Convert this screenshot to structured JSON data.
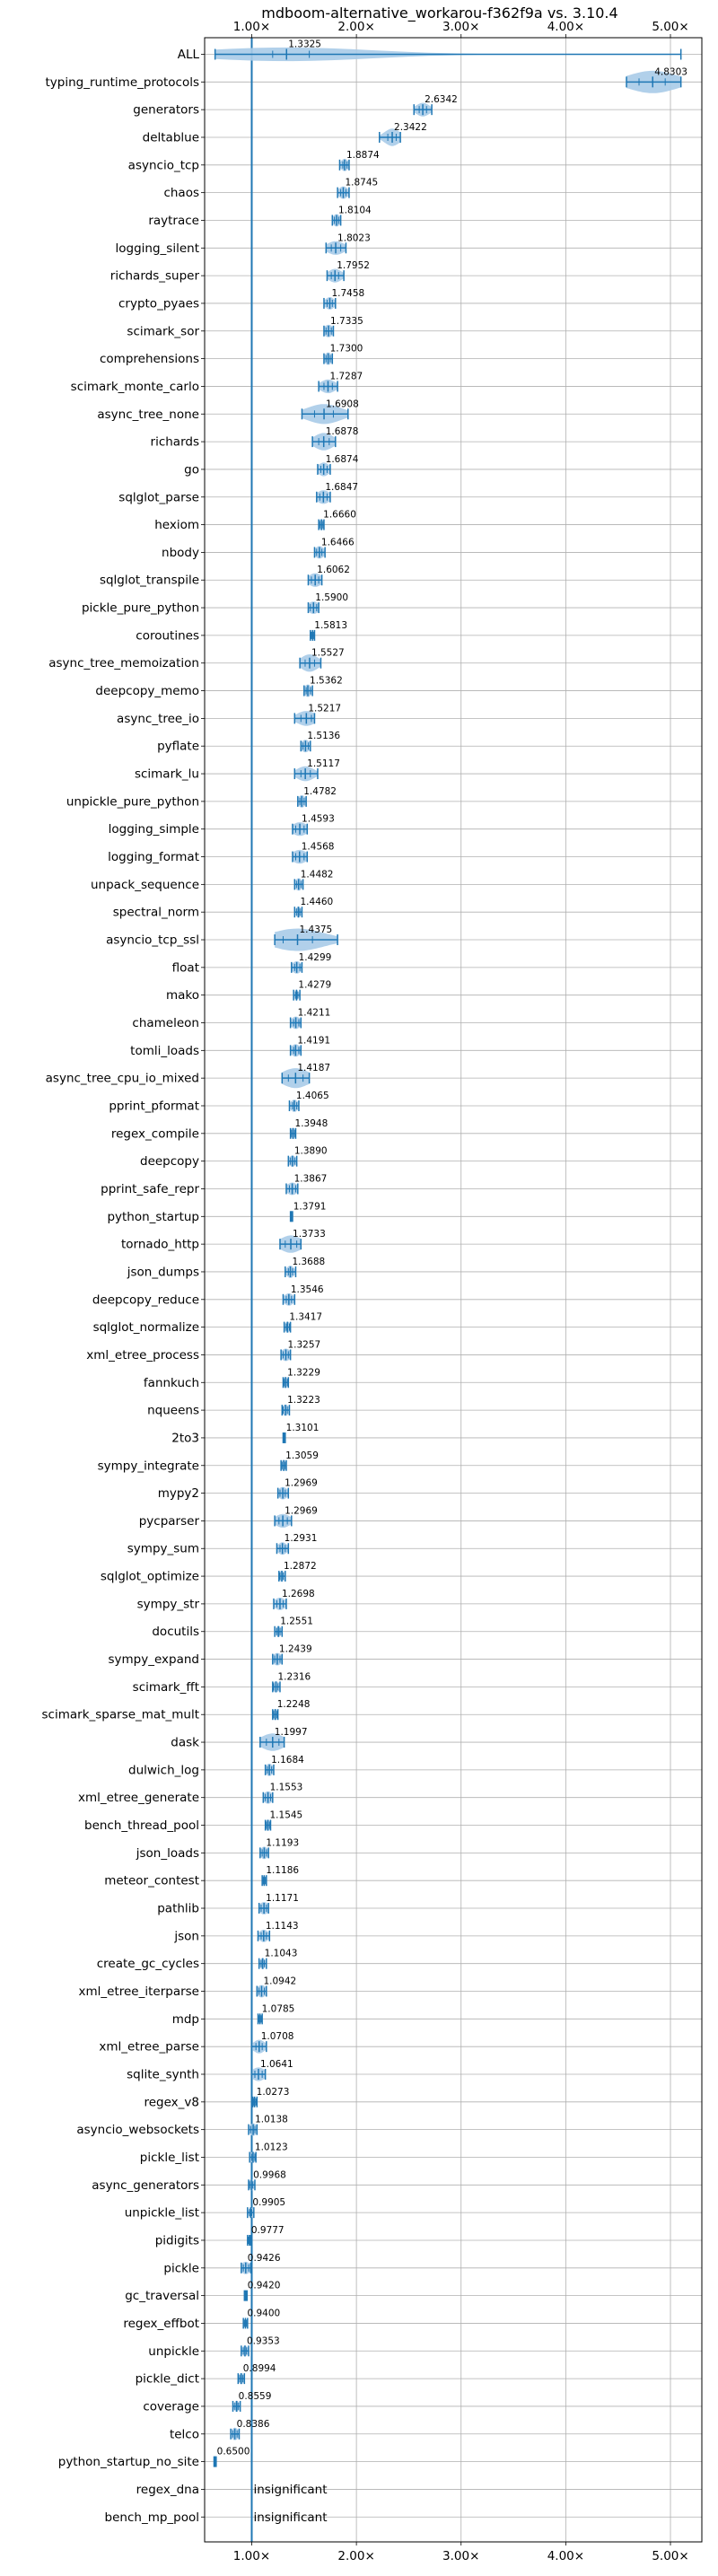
{
  "chart_data": {
    "type": "violin",
    "title": "mdboom-alternative_workarou-f362f9a vs. 3.10.4",
    "x_scale": "linear",
    "x_ticks": [
      1.0,
      2.0,
      3.0,
      4.0,
      5.0
    ],
    "x_tick_labels": [
      "1.00×",
      "2.00×",
      "3.00×",
      "4.00×",
      "5.00×"
    ],
    "xlim": [
      0.55,
      5.3
    ],
    "reference_line": 1.0,
    "grid": true,
    "colors": {
      "violin_fill": "#a9cbe8",
      "line": "#1f77b4",
      "grid": "#b0b0b0"
    },
    "insignificant_label": "insignificant",
    "benchmarks": [
      {
        "name": "ALL",
        "value": 1.3325,
        "label": "1.3325",
        "min": 0.65,
        "max": 5.1,
        "q1": 1.2,
        "q3": 1.55,
        "width": 0.55
      },
      {
        "name": "typing_runtime_protocols",
        "value": 4.8303,
        "label": "4.8303",
        "min": 4.58,
        "max": 5.1,
        "q1": 4.7,
        "q3": 4.95,
        "width": 0.9
      },
      {
        "name": "generators",
        "value": 2.6342,
        "label": "2.6342",
        "min": 2.55,
        "max": 2.72,
        "q1": 2.6,
        "q3": 2.67,
        "width": 0.55
      },
      {
        "name": "deltablue",
        "value": 2.3422,
        "label": "2.3422",
        "min": 2.22,
        "max": 2.42,
        "q1": 2.3,
        "q3": 2.38,
        "width": 0.7
      },
      {
        "name": "asyncio_tcp",
        "value": 1.8874,
        "label": "1.8874",
        "min": 1.84,
        "max": 1.93,
        "q1": 1.87,
        "q3": 1.91,
        "width": 0.5
      },
      {
        "name": "chaos",
        "value": 1.8745,
        "label": "1.8745",
        "min": 1.82,
        "max": 1.93,
        "q1": 1.85,
        "q3": 1.9,
        "width": 0.5
      },
      {
        "name": "raytrace",
        "value": 1.8104,
        "label": "1.8104",
        "min": 1.77,
        "max": 1.85,
        "q1": 1.79,
        "q3": 1.83,
        "width": 0.5
      },
      {
        "name": "logging_silent",
        "value": 1.8023,
        "label": "1.8023",
        "min": 1.71,
        "max": 1.9,
        "q1": 1.76,
        "q3": 1.85,
        "width": 0.55
      },
      {
        "name": "richards_super",
        "value": 1.7952,
        "label": "1.7952",
        "min": 1.72,
        "max": 1.88,
        "q1": 1.76,
        "q3": 1.83,
        "width": 0.55
      },
      {
        "name": "crypto_pyaes",
        "value": 1.7458,
        "label": "1.7458",
        "min": 1.69,
        "max": 1.8,
        "q1": 1.72,
        "q3": 1.77,
        "width": 0.5
      },
      {
        "name": "scimark_sor",
        "value": 1.7335,
        "label": "1.7335",
        "min": 1.69,
        "max": 1.78,
        "q1": 1.71,
        "q3": 1.76,
        "width": 0.5
      },
      {
        "name": "comprehensions",
        "value": 1.73,
        "label": "1.7300",
        "min": 1.69,
        "max": 1.77,
        "q1": 1.71,
        "q3": 1.75,
        "width": 0.5
      },
      {
        "name": "scimark_monte_carlo",
        "value": 1.7287,
        "label": "1.7287",
        "min": 1.64,
        "max": 1.82,
        "q1": 1.69,
        "q3": 1.77,
        "width": 0.55
      },
      {
        "name": "async_tree_none",
        "value": 1.6908,
        "label": "1.6908",
        "min": 1.48,
        "max": 1.92,
        "q1": 1.6,
        "q3": 1.78,
        "width": 0.8
      },
      {
        "name": "richards",
        "value": 1.6878,
        "label": "1.6878",
        "min": 1.58,
        "max": 1.8,
        "q1": 1.64,
        "q3": 1.74,
        "width": 0.7
      },
      {
        "name": "go",
        "value": 1.6874,
        "label": "1.6874",
        "min": 1.63,
        "max": 1.75,
        "q1": 1.66,
        "q3": 1.72,
        "width": 0.55
      },
      {
        "name": "sqlglot_parse",
        "value": 1.6847,
        "label": "1.6847",
        "min": 1.62,
        "max": 1.75,
        "q1": 1.65,
        "q3": 1.72,
        "width": 0.55
      },
      {
        "name": "hexiom",
        "value": 1.666,
        "label": "1.6660",
        "min": 1.64,
        "max": 1.69,
        "q1": 1.65,
        "q3": 1.68,
        "width": 0.45
      },
      {
        "name": "nbody",
        "value": 1.6466,
        "label": "1.6466",
        "min": 1.6,
        "max": 1.7,
        "q1": 1.62,
        "q3": 1.67,
        "width": 0.5
      },
      {
        "name": "sqlglot_transpile",
        "value": 1.6062,
        "label": "1.6062",
        "min": 1.54,
        "max": 1.67,
        "q1": 1.57,
        "q3": 1.64,
        "width": 0.55
      },
      {
        "name": "pickle_pure_python",
        "value": 1.59,
        "label": "1.5900",
        "min": 1.54,
        "max": 1.64,
        "q1": 1.56,
        "q3": 1.62,
        "width": 0.5
      },
      {
        "name": "coroutines",
        "value": 1.5813,
        "label": "1.5813",
        "min": 1.56,
        "max": 1.6,
        "q1": 1.57,
        "q3": 1.59,
        "width": 0.35
      },
      {
        "name": "async_tree_memoization",
        "value": 1.5527,
        "label": "1.5527",
        "min": 1.46,
        "max": 1.66,
        "q1": 1.51,
        "q3": 1.6,
        "width": 0.7
      },
      {
        "name": "deepcopy_memo",
        "value": 1.5362,
        "label": "1.5362",
        "min": 1.5,
        "max": 1.58,
        "q1": 1.52,
        "q3": 1.56,
        "width": 0.5
      },
      {
        "name": "async_tree_io",
        "value": 1.5217,
        "label": "1.5217",
        "min": 1.41,
        "max": 1.6,
        "q1": 1.47,
        "q3": 1.57,
        "width": 0.6
      },
      {
        "name": "pyflate",
        "value": 1.5136,
        "label": "1.5136",
        "min": 1.47,
        "max": 1.56,
        "q1": 1.49,
        "q3": 1.54,
        "width": 0.5
      },
      {
        "name": "scimark_lu",
        "value": 1.5117,
        "label": "1.5117",
        "min": 1.41,
        "max": 1.63,
        "q1": 1.47,
        "q3": 1.56,
        "width": 0.6
      },
      {
        "name": "unpickle_pure_python",
        "value": 1.4782,
        "label": "1.4782",
        "min": 1.44,
        "max": 1.52,
        "q1": 1.46,
        "q3": 1.5,
        "width": 0.5
      },
      {
        "name": "logging_simple",
        "value": 1.4593,
        "label": "1.4593",
        "min": 1.39,
        "max": 1.53,
        "q1": 1.42,
        "q3": 1.5,
        "width": 0.55
      },
      {
        "name": "logging_format",
        "value": 1.4568,
        "label": "1.4568",
        "min": 1.39,
        "max": 1.53,
        "q1": 1.42,
        "q3": 1.5,
        "width": 0.55
      },
      {
        "name": "unpack_sequence",
        "value": 1.4482,
        "label": "1.4482",
        "min": 1.41,
        "max": 1.49,
        "q1": 1.43,
        "q3": 1.47,
        "width": 0.5
      },
      {
        "name": "spectral_norm",
        "value": 1.446,
        "label": "1.4460",
        "min": 1.41,
        "max": 1.48,
        "q1": 1.43,
        "q3": 1.46,
        "width": 0.45
      },
      {
        "name": "asyncio_tcp_ssl",
        "value": 1.4375,
        "label": "1.4375",
        "min": 1.22,
        "max": 1.82,
        "q1": 1.3,
        "q3": 1.58,
        "width": 0.9
      },
      {
        "name": "float",
        "value": 1.4299,
        "label": "1.4299",
        "min": 1.38,
        "max": 1.48,
        "q1": 1.41,
        "q3": 1.46,
        "width": 0.5
      },
      {
        "name": "mako",
        "value": 1.4279,
        "label": "1.4279",
        "min": 1.4,
        "max": 1.46,
        "q1": 1.42,
        "q3": 1.44,
        "width": 0.45
      },
      {
        "name": "chameleon",
        "value": 1.4211,
        "label": "1.4211",
        "min": 1.37,
        "max": 1.47,
        "q1": 1.4,
        "q3": 1.45,
        "width": 0.5
      },
      {
        "name": "tomli_loads",
        "value": 1.4191,
        "label": "1.4191",
        "min": 1.37,
        "max": 1.47,
        "q1": 1.4,
        "q3": 1.45,
        "width": 0.5
      },
      {
        "name": "async_tree_cpu_io_mixed",
        "value": 1.4187,
        "label": "1.4187",
        "min": 1.29,
        "max": 1.55,
        "q1": 1.35,
        "q3": 1.49,
        "width": 0.8
      },
      {
        "name": "pprint_pformat",
        "value": 1.4065,
        "label": "1.4065",
        "min": 1.36,
        "max": 1.45,
        "q1": 1.39,
        "q3": 1.43,
        "width": 0.5
      },
      {
        "name": "regex_compile",
        "value": 1.3948,
        "label": "1.3948",
        "min": 1.37,
        "max": 1.42,
        "q1": 1.38,
        "q3": 1.41,
        "width": 0.45
      },
      {
        "name": "deepcopy",
        "value": 1.389,
        "label": "1.3890",
        "min": 1.35,
        "max": 1.43,
        "q1": 1.37,
        "q3": 1.41,
        "width": 0.45
      },
      {
        "name": "pprint_safe_repr",
        "value": 1.3867,
        "label": "1.3867",
        "min": 1.33,
        "max": 1.44,
        "q1": 1.36,
        "q3": 1.42,
        "width": 0.5
      },
      {
        "name": "python_startup",
        "value": 1.3791,
        "label": "1.3791",
        "min": 1.37,
        "max": 1.39,
        "q1": 1.375,
        "q3": 1.385,
        "width": 0.3
      },
      {
        "name": "tornado_http",
        "value": 1.3733,
        "label": "1.3733",
        "min": 1.27,
        "max": 1.47,
        "q1": 1.32,
        "q3": 1.43,
        "width": 0.7
      },
      {
        "name": "json_dumps",
        "value": 1.3688,
        "label": "1.3688",
        "min": 1.32,
        "max": 1.42,
        "q1": 1.35,
        "q3": 1.39,
        "width": 0.5
      },
      {
        "name": "deepcopy_reduce",
        "value": 1.3546,
        "label": "1.3546",
        "min": 1.3,
        "max": 1.41,
        "q1": 1.33,
        "q3": 1.38,
        "width": 0.5
      },
      {
        "name": "sqlglot_normalize",
        "value": 1.3417,
        "label": "1.3417",
        "min": 1.31,
        "max": 1.37,
        "q1": 1.33,
        "q3": 1.36,
        "width": 0.45
      },
      {
        "name": "xml_etree_process",
        "value": 1.3257,
        "label": "1.3257",
        "min": 1.28,
        "max": 1.37,
        "q1": 1.3,
        "q3": 1.35,
        "width": 0.5
      },
      {
        "name": "fannkuch",
        "value": 1.3229,
        "label": "1.3229",
        "min": 1.3,
        "max": 1.35,
        "q1": 1.31,
        "q3": 1.34,
        "width": 0.45
      },
      {
        "name": "nqueens",
        "value": 1.3223,
        "label": "1.3223",
        "min": 1.29,
        "max": 1.36,
        "q1": 1.3,
        "q3": 1.34,
        "width": 0.45
      },
      {
        "name": "2to3",
        "value": 1.3101,
        "label": "1.3101",
        "min": 1.3,
        "max": 1.32,
        "q1": 1.305,
        "q3": 1.315,
        "width": 0.35
      },
      {
        "name": "sympy_integrate",
        "value": 1.3059,
        "label": "1.3059",
        "min": 1.28,
        "max": 1.33,
        "q1": 1.29,
        "q3": 1.32,
        "width": 0.45
      },
      {
        "name": "mypy2",
        "value": 1.2969,
        "label": "1.2969",
        "min": 1.25,
        "max": 1.35,
        "q1": 1.27,
        "q3": 1.32,
        "width": 0.5
      },
      {
        "name": "pycparser",
        "value": 1.2969,
        "label": "1.2969",
        "min": 1.22,
        "max": 1.38,
        "q1": 1.26,
        "q3": 1.34,
        "width": 0.55
      },
      {
        "name": "sympy_sum",
        "value": 1.2931,
        "label": "1.2931",
        "min": 1.24,
        "max": 1.35,
        "q1": 1.27,
        "q3": 1.32,
        "width": 0.5
      },
      {
        "name": "sqlglot_optimize",
        "value": 1.2872,
        "label": "1.2872",
        "min": 1.26,
        "max": 1.32,
        "q1": 1.27,
        "q3": 1.3,
        "width": 0.45
      },
      {
        "name": "sympy_str",
        "value": 1.2698,
        "label": "1.2698",
        "min": 1.21,
        "max": 1.33,
        "q1": 1.24,
        "q3": 1.3,
        "width": 0.5
      },
      {
        "name": "docutils",
        "value": 1.2551,
        "label": "1.2551",
        "min": 1.22,
        "max": 1.29,
        "q1": 1.24,
        "q3": 1.27,
        "width": 0.45
      },
      {
        "name": "sympy_expand",
        "value": 1.2439,
        "label": "1.2439",
        "min": 1.2,
        "max": 1.29,
        "q1": 1.22,
        "q3": 1.27,
        "width": 0.5
      },
      {
        "name": "scimark_fft",
        "value": 1.2316,
        "label": "1.2316",
        "min": 1.2,
        "max": 1.27,
        "q1": 1.21,
        "q3": 1.25,
        "width": 0.45
      },
      {
        "name": "scimark_sparse_mat_mult",
        "value": 1.2248,
        "label": "1.2248",
        "min": 1.2,
        "max": 1.25,
        "q1": 1.21,
        "q3": 1.24,
        "width": 0.45
      },
      {
        "name": "dask",
        "value": 1.1997,
        "label": "1.1997",
        "min": 1.08,
        "max": 1.31,
        "q1": 1.14,
        "q3": 1.26,
        "width": 0.7
      },
      {
        "name": "dulwich_log",
        "value": 1.1684,
        "label": "1.1684",
        "min": 1.13,
        "max": 1.21,
        "q1": 1.15,
        "q3": 1.19,
        "width": 0.5
      },
      {
        "name": "xml_etree_generate",
        "value": 1.1553,
        "label": "1.1553",
        "min": 1.11,
        "max": 1.2,
        "q1": 1.13,
        "q3": 1.18,
        "width": 0.5
      },
      {
        "name": "bench_thread_pool",
        "value": 1.1545,
        "label": "1.1545",
        "min": 1.13,
        "max": 1.18,
        "q1": 1.14,
        "q3": 1.17,
        "width": 0.45
      },
      {
        "name": "json_loads",
        "value": 1.1193,
        "label": "1.1193",
        "min": 1.08,
        "max": 1.16,
        "q1": 1.1,
        "q3": 1.14,
        "width": 0.5
      },
      {
        "name": "meteor_contest",
        "value": 1.1186,
        "label": "1.1186",
        "min": 1.1,
        "max": 1.14,
        "q1": 1.11,
        "q3": 1.13,
        "width": 0.4
      },
      {
        "name": "pathlib",
        "value": 1.1171,
        "label": "1.1171",
        "min": 1.07,
        "max": 1.16,
        "q1": 1.09,
        "q3": 1.14,
        "width": 0.5
      },
      {
        "name": "json",
        "value": 1.1143,
        "label": "1.1143",
        "min": 1.06,
        "max": 1.17,
        "q1": 1.09,
        "q3": 1.14,
        "width": 0.5
      },
      {
        "name": "create_gc_cycles",
        "value": 1.1043,
        "label": "1.1043",
        "min": 1.07,
        "max": 1.14,
        "q1": 1.09,
        "q3": 1.12,
        "width": 0.45
      },
      {
        "name": "xml_etree_iterparse",
        "value": 1.0942,
        "label": "1.0942",
        "min": 1.05,
        "max": 1.14,
        "q1": 1.07,
        "q3": 1.12,
        "width": 0.5
      },
      {
        "name": "mdp",
        "value": 1.0785,
        "label": "1.0785",
        "min": 1.06,
        "max": 1.1,
        "q1": 1.07,
        "q3": 1.09,
        "width": 0.4
      },
      {
        "name": "xml_etree_parse",
        "value": 1.0708,
        "label": "1.0708",
        "min": 1.0,
        "max": 1.14,
        "q1": 1.04,
        "q3": 1.1,
        "width": 0.55
      },
      {
        "name": "sqlite_synth",
        "value": 1.0641,
        "label": "1.0641",
        "min": 1.0,
        "max": 1.13,
        "q1": 1.03,
        "q3": 1.1,
        "width": 0.55
      },
      {
        "name": "regex_v8",
        "value": 1.0273,
        "label": "1.0273",
        "min": 1.01,
        "max": 1.05,
        "q1": 1.02,
        "q3": 1.04,
        "width": 0.4
      },
      {
        "name": "asyncio_websockets",
        "value": 1.0138,
        "label": "1.0138",
        "min": 0.97,
        "max": 1.05,
        "q1": 0.99,
        "q3": 1.03,
        "width": 0.5
      },
      {
        "name": "pickle_list",
        "value": 1.0123,
        "label": "1.0123",
        "min": 0.98,
        "max": 1.04,
        "q1": 1.0,
        "q3": 1.03,
        "width": 0.45
      },
      {
        "name": "async_generators",
        "value": 0.9968,
        "label": "0.9968",
        "min": 0.97,
        "max": 1.03,
        "q1": 0.98,
        "q3": 1.01,
        "width": 0.45
      },
      {
        "name": "unpickle_list",
        "value": 0.9905,
        "label": "0.9905",
        "min": 0.96,
        "max": 1.02,
        "q1": 0.98,
        "q3": 1.0,
        "width": 0.45
      },
      {
        "name": "pidigits",
        "value": 0.9777,
        "label": "0.9777",
        "min": 0.96,
        "max": 0.99,
        "q1": 0.97,
        "q3": 0.985,
        "width": 0.35
      },
      {
        "name": "pickle",
        "value": 0.9426,
        "label": "0.9426",
        "min": 0.9,
        "max": 0.99,
        "q1": 0.92,
        "q3": 0.97,
        "width": 0.5
      },
      {
        "name": "gc_traversal",
        "value": 0.942,
        "label": "0.9420",
        "min": 0.93,
        "max": 0.955,
        "q1": 0.935,
        "q3": 0.95,
        "width": 0.3
      },
      {
        "name": "regex_effbot",
        "value": 0.94,
        "label": "0.9400",
        "min": 0.92,
        "max": 0.96,
        "q1": 0.93,
        "q3": 0.95,
        "width": 0.35
      },
      {
        "name": "unpickle",
        "value": 0.9353,
        "label": "0.9353",
        "min": 0.9,
        "max": 0.97,
        "q1": 0.92,
        "q3": 0.95,
        "width": 0.45
      },
      {
        "name": "pickle_dict",
        "value": 0.8994,
        "label": "0.8994",
        "min": 0.87,
        "max": 0.93,
        "q1": 0.885,
        "q3": 0.915,
        "width": 0.45
      },
      {
        "name": "coverage",
        "value": 0.8559,
        "label": "0.8559",
        "min": 0.82,
        "max": 0.89,
        "q1": 0.84,
        "q3": 0.87,
        "width": 0.45
      },
      {
        "name": "telco",
        "value": 0.8386,
        "label": "0.8386",
        "min": 0.8,
        "max": 0.88,
        "q1": 0.82,
        "q3": 0.86,
        "width": 0.5
      },
      {
        "name": "python_startup_no_site",
        "value": 0.65,
        "label": "0.6500",
        "min": 0.64,
        "max": 0.66,
        "q1": 0.645,
        "q3": 0.655,
        "width": 0.3
      },
      {
        "name": "regex_dna",
        "insignificant": true
      },
      {
        "name": "bench_mp_pool",
        "insignificant": true
      }
    ]
  }
}
